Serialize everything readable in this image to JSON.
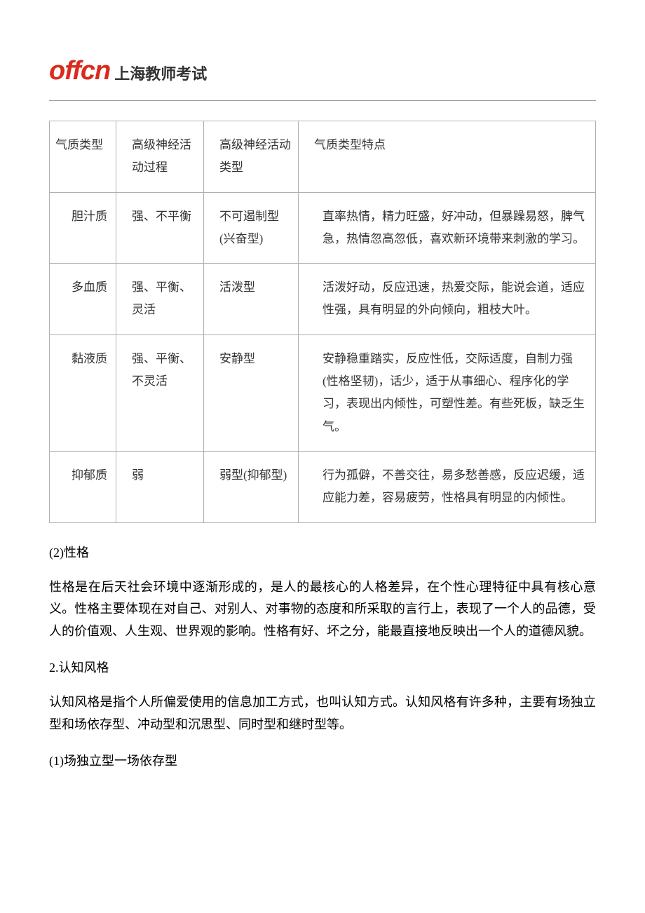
{
  "logo": {
    "brand": "offcn",
    "chinese": "上海教师考试",
    "brand_color": "#d92b1e",
    "text_color": "#333333"
  },
  "table": {
    "header": {
      "col1": "气质类型",
      "col2": "高级神经活动过程",
      "col3": "高级神经活动类型",
      "col4": "气质类型特点"
    },
    "rows": [
      {
        "type": "胆汁质",
        "process": "强、不平衡",
        "activity_type": "不可遏制型(兴奋型)",
        "features": "直率热情，精力旺盛，好冲动，但暴躁易怒，脾气急，热情忽高忽低，喜欢新环境带来刺激的学习。"
      },
      {
        "type": "多血质",
        "process": "强、平衡、灵活",
        "activity_type": "活泼型",
        "features": "活泼好动，反应迅速，热爱交际，能说会道，适应性强，具有明显的外向倾向，粗枝大叶。"
      },
      {
        "type": "黏液质",
        "process": "强、平衡、不灵活",
        "activity_type": "安静型",
        "features": "安静稳重踏实，反应性低，交际适度，自制力强(性格坚韧)，话少，适于从事细心、程序化的学习，表现出内倾性，可塑性差。有些死板，缺乏生气。"
      },
      {
        "type": "抑郁质",
        "process": "弱",
        "activity_type": "弱型(抑郁型)",
        "features": "行为孤僻，不善交往，易多愁善感，反应迟缓，适应能力差，容易疲劳，性格具有明显的内倾性。"
      }
    ],
    "border_color": "#b0b0b0",
    "cell_fontsize": 17,
    "cell_text_color": "#333333"
  },
  "sections": {
    "s1_number": "(2)性格",
    "s1_body": "性格是在后天社会环境中逐渐形成的，是人的最核心的人格差异，在个性心理特征中具有核心意义。性格主要体现在对自己、对别人、对事物的态度和所采取的言行上，表现了一个人的品德，受人的价值观、人生观、世界观的影响。性格有好、坏之分，能最直接地反映出一个人的道德风貌。",
    "s2_number": "2.认知风格",
    "s2_body": "认知风格是指个人所偏爱使用的信息加工方式，也叫认知方式。认知风格有许多种，主要有场独立型和场依存型、冲动型和沉思型、同时型和继时型等。",
    "s3_number": "(1)场独立型一场依存型"
  },
  "styling": {
    "body_width": 920,
    "body_fontsize": 18,
    "body_text_color": "#000000",
    "background_color": "#ffffff"
  }
}
